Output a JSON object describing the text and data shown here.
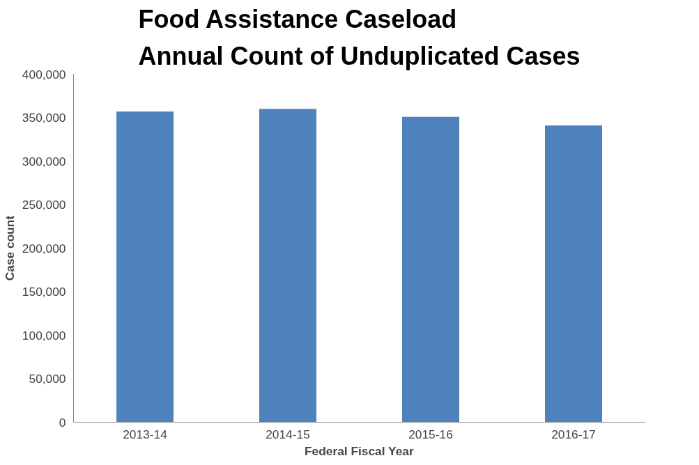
{
  "chart_data": {
    "type": "bar",
    "title": "Food Assistance Caseload\nAnnual Count of Unduplicated Cases",
    "xlabel": "Federal Fiscal Year",
    "ylabel": "Case count",
    "categories": [
      "2013-14",
      "2014-15",
      "2015-16",
      "2016-17"
    ],
    "series": [
      {
        "color": "#4f81bd",
        "values": [
          357000,
          360000,
          351000,
          341000
        ]
      }
    ],
    "ylim": [
      0,
      400000
    ],
    "yticks": [
      {
        "value": 0,
        "label": "0"
      },
      {
        "value": 50000,
        "label": "50,000"
      },
      {
        "value": 100000,
        "label": "100,000"
      },
      {
        "value": 150000,
        "label": "150,000"
      },
      {
        "value": 200000,
        "label": "200,000"
      },
      {
        "value": 250000,
        "label": "250,000"
      },
      {
        "value": 300000,
        "label": "300,000"
      },
      {
        "value": 350000,
        "label": "350,000"
      },
      {
        "value": 400000,
        "label": "400,000"
      }
    ],
    "grid": false
  }
}
